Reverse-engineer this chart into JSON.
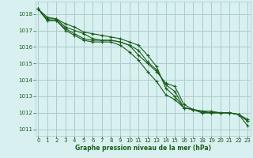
{
  "bg_color": "#d8f0f0",
  "grid_color": "#aacccc",
  "line_color": "#1a5c1a",
  "marker_color": "#1a5c1a",
  "xlabel": "Graphe pression niveau de la mer (hPa)",
  "xlabel_color": "#1a5c1a",
  "tick_color": "#1a5c1a",
  "xlim": [
    -0.3,
    23.3
  ],
  "ylim": [
    1010.6,
    1018.75
  ],
  "yticks": [
    1011,
    1012,
    1013,
    1014,
    1015,
    1016,
    1017,
    1018
  ],
  "xticks": [
    0,
    1,
    2,
    3,
    4,
    5,
    6,
    7,
    8,
    9,
    10,
    11,
    12,
    13,
    14,
    15,
    16,
    17,
    18,
    19,
    20,
    21,
    22,
    23
  ],
  "series": [
    [
      1018.3,
      1017.8,
      1017.7,
      1017.2,
      1017.0,
      1016.8,
      1016.5,
      1016.4,
      1016.4,
      1016.3,
      1016.1,
      1015.5,
      1015.0,
      1014.5,
      1013.8,
      1013.6,
      1012.5,
      1012.2,
      1012.0,
      1012.0,
      1012.0,
      1012.0,
      1011.9,
      1011.6
    ],
    [
      1018.3,
      1017.6,
      1017.6,
      1017.0,
      1016.7,
      1016.4,
      1016.3,
      1016.3,
      1016.3,
      1016.1,
      1015.7,
      1015.2,
      1014.5,
      1013.9,
      1013.1,
      1012.8,
      1012.3,
      1012.2,
      1012.1,
      1012.0,
      1012.0,
      1012.0,
      1011.9,
      1011.2
    ],
    [
      1018.3,
      1017.6,
      1017.6,
      1017.1,
      1016.8,
      1016.5,
      1016.4,
      1016.4,
      1016.4,
      1016.3,
      1016.1,
      1015.8,
      1015.1,
      1014.6,
      1013.7,
      1013.3,
      1012.3,
      1012.2,
      1012.0,
      1012.0,
      1012.0,
      1012.0,
      1011.9,
      1011.5
    ],
    [
      1018.3,
      1017.7,
      1017.7,
      1017.4,
      1017.2,
      1016.9,
      1016.8,
      1016.7,
      1016.6,
      1016.5,
      1016.3,
      1016.1,
      1015.5,
      1014.8,
      1013.5,
      1013.0,
      1012.3,
      1012.2,
      1012.1,
      1012.1,
      1012.0,
      1012.0,
      1011.9,
      1011.5
    ]
  ]
}
